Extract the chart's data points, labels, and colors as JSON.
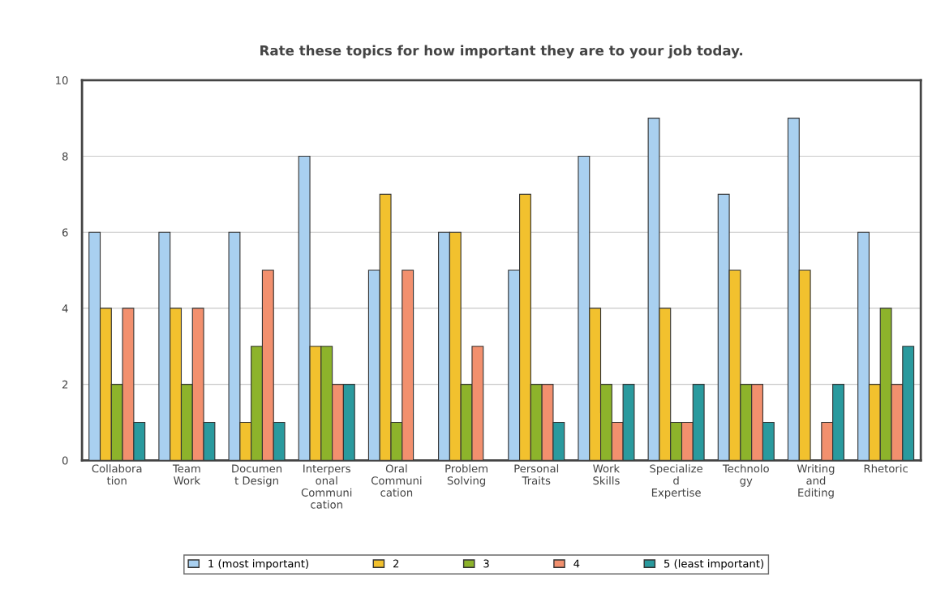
{
  "chart_data": {
    "type": "bar",
    "title": "Rate these topics for how important they are to your job today.",
    "categories": [
      "Collabora\ntion",
      "Team\nWork",
      "Documen\nt Design",
      "Interpers\nonal\nCommuni\ncation",
      "Oral\nCommuni\ncation",
      "Problem\nSolving",
      "Personal\nTraits",
      "Work\nSkills",
      "Specialize\nd\nExpertise",
      "Technolo\ngy",
      "Writing\nand\nEditing",
      "Rhetoric"
    ],
    "series": [
      {
        "name": "1 (most important)",
        "color": "#a9d0f0",
        "values": [
          6,
          6,
          6,
          8,
          5,
          6,
          5,
          8,
          9,
          7,
          9,
          6
        ]
      },
      {
        "name": "2",
        "color": "#f2c12e",
        "values": [
          4,
          4,
          1,
          3,
          7,
          6,
          7,
          4,
          4,
          5,
          5,
          2
        ]
      },
      {
        "name": "3",
        "color": "#8db32b",
        "values": [
          2,
          2,
          3,
          3,
          1,
          2,
          2,
          2,
          1,
          2,
          0,
          4
        ]
      },
      {
        "name": "4",
        "color": "#f2906e",
        "values": [
          4,
          4,
          5,
          2,
          5,
          3,
          2,
          1,
          1,
          2,
          1,
          2
        ]
      },
      {
        "name": "5 (least important)",
        "color": "#2a9a9e",
        "values": [
          1,
          1,
          1,
          2,
          0,
          0,
          1,
          2,
          2,
          1,
          2,
          3
        ]
      }
    ],
    "ylim": [
      0,
      10
    ],
    "yticks": [
      0,
      2,
      4,
      6,
      8,
      10
    ],
    "grid": "y",
    "legend": "bottom"
  }
}
